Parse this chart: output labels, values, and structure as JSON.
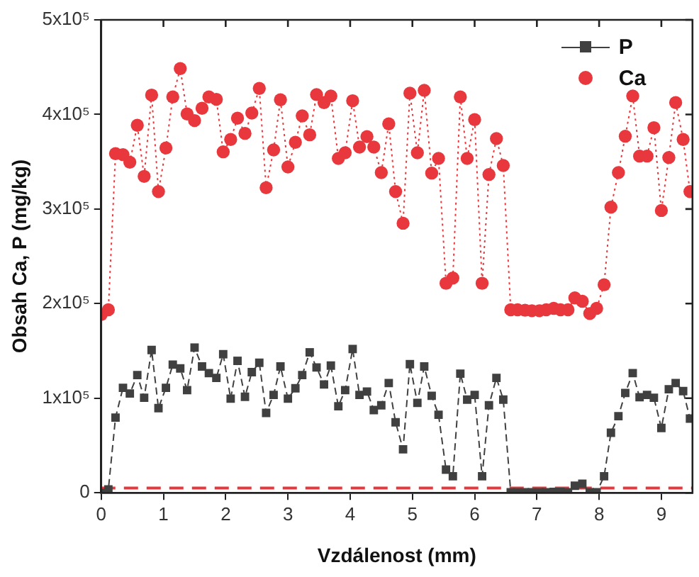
{
  "chart_data": {
    "type": "line",
    "xlabel": "Vzdálenost (mm)",
    "ylabel": "Obsah Ca, P (mg/kg)",
    "xlim": [
      0,
      9.5
    ],
    "xticks": [
      0,
      1,
      2,
      3,
      4,
      5,
      6,
      7,
      8,
      9
    ],
    "ylim": [
      0,
      500000
    ],
    "yticks": [
      0,
      {
        "value": 100000,
        "label": "1x10⁵"
      },
      {
        "value": 200000,
        "label": "2x10⁵"
      },
      {
        "value": 300000,
        "label": "3x10⁵"
      },
      {
        "value": 400000,
        "label": "4x10⁵"
      },
      {
        "value": 500000,
        "label": "5x10⁵"
      }
    ],
    "grid": false,
    "legend": "top right",
    "x": [
      0,
      0.115,
      0.23,
      0.35,
      0.46,
      0.58,
      0.69,
      0.81,
      0.92,
      1.04,
      1.15,
      1.27,
      1.38,
      1.5,
      1.62,
      1.73,
      1.85,
      1.96,
      2.08,
      2.19,
      2.31,
      2.42,
      2.54,
      2.65,
      2.77,
      2.88,
      3.0,
      3.12,
      3.23,
      3.35,
      3.46,
      3.58,
      3.69,
      3.81,
      3.92,
      4.04,
      4.15,
      4.27,
      4.38,
      4.5,
      4.62,
      4.73,
      4.85,
      4.96,
      5.08,
      5.19,
      5.31,
      5.42,
      5.54,
      5.65,
      5.77,
      5.88,
      6.0,
      6.12,
      6.23,
      6.35,
      6.46,
      6.58,
      6.69,
      6.81,
      6.92,
      7.04,
      7.15,
      7.27,
      7.38,
      7.5,
      7.61,
      7.73,
      7.85,
      7.96,
      8.08,
      8.19,
      8.31,
      8.42,
      8.54,
      8.65,
      8.77,
      8.88,
      9.0,
      9.12,
      9.23,
      9.35,
      9.46
    ],
    "series": [
      {
        "name": "P",
        "color": "#404040",
        "marker": "square",
        "line_style": "dashed",
        "values": [
          0,
          3500,
          79500,
          111000,
          105000,
          124500,
          100500,
          151000,
          89500,
          111000,
          135500,
          131500,
          108500,
          153500,
          133500,
          126500,
          121500,
          146500,
          99500,
          139500,
          101500,
          127500,
          137500,
          84500,
          103500,
          133500,
          99500,
          110500,
          124500,
          148500,
          132500,
          114500,
          134500,
          91500,
          108500,
          152000,
          103500,
          107000,
          87500,
          92500,
          116000,
          74500,
          46000,
          136000,
          95000,
          133500,
          102500,
          82500,
          24500,
          17500,
          126000,
          98500,
          103500,
          17500,
          92500,
          121500,
          98500,
          500,
          500,
          500,
          500,
          500,
          500,
          1000,
          1000,
          500,
          7500,
          9500,
          500,
          500,
          17500,
          63500,
          81000,
          105500,
          126500,
          101000,
          103500,
          100500,
          68500,
          109500,
          116000,
          107500,
          78500
        ]
      },
      {
        "name": "Ca",
        "color": "#e8383d",
        "marker": "circle",
        "line_style": "dotted",
        "values": [
          188500,
          193500,
          358500,
          357500,
          349500,
          388500,
          334500,
          420500,
          318500,
          364500,
          418500,
          448500,
          400500,
          393500,
          406500,
          418500,
          416000,
          360500,
          373500,
          396000,
          380000,
          401500,
          427500,
          322500,
          362500,
          415500,
          344500,
          370500,
          398500,
          378500,
          421000,
          412500,
          419500,
          353500,
          359500,
          414500,
          365500,
          376500,
          365500,
          338500,
          390000,
          318500,
          285000,
          422500,
          359500,
          425500,
          338000,
          353500,
          221500,
          227000,
          418500,
          353500,
          394500,
          221500,
          336500,
          374500,
          346000,
          193500,
          193500,
          193000,
          192500,
          192500,
          193500,
          195000,
          193500,
          193500,
          206000,
          202500,
          189500,
          195000,
          220000,
          302000,
          338500,
          377000,
          419500,
          356000,
          356000,
          386000,
          298500,
          354500,
          412500,
          373500,
          318500
        ]
      }
    ],
    "ref_lines": [
      {
        "axis": "y",
        "value": 5000,
        "color": "#e8383d",
        "line_style": "dashed"
      }
    ]
  }
}
